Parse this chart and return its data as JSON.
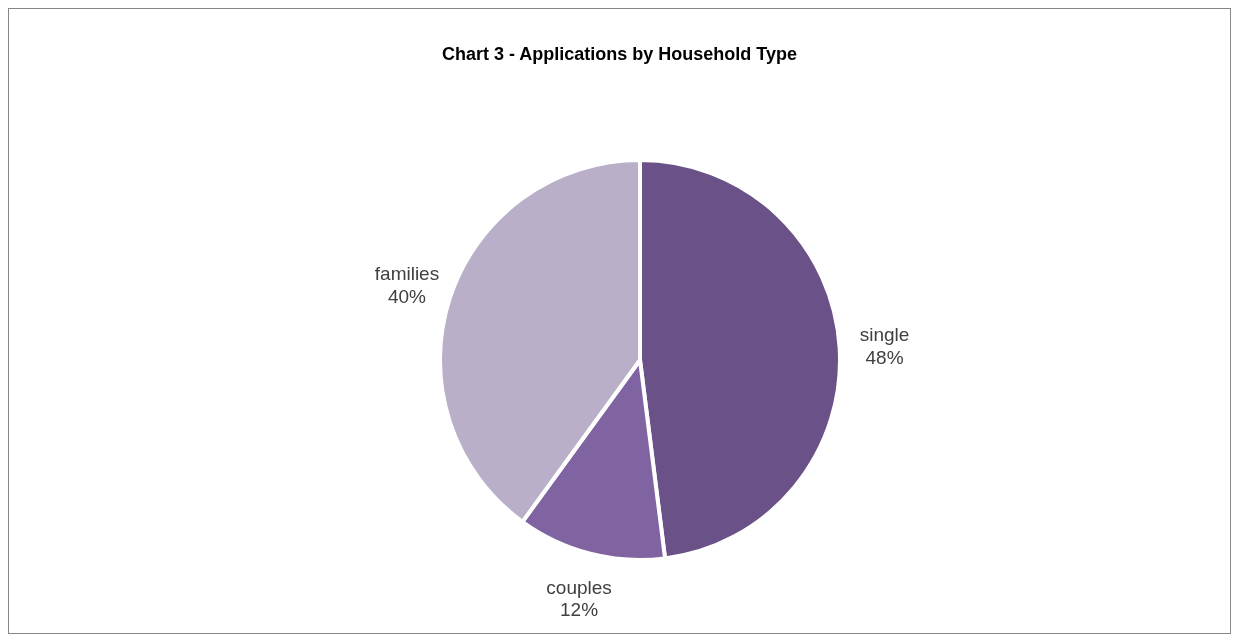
{
  "chart_data": {
    "type": "pie",
    "title": "Chart 3 - Applications by Household Type",
    "categories": [
      "single",
      "couples",
      "families"
    ],
    "values": [
      48,
      12,
      40
    ],
    "value_labels": [
      "48%",
      "12%",
      "40%"
    ],
    "colors": [
      "#6a5187",
      "#8064a2",
      "#b9afc9"
    ]
  }
}
